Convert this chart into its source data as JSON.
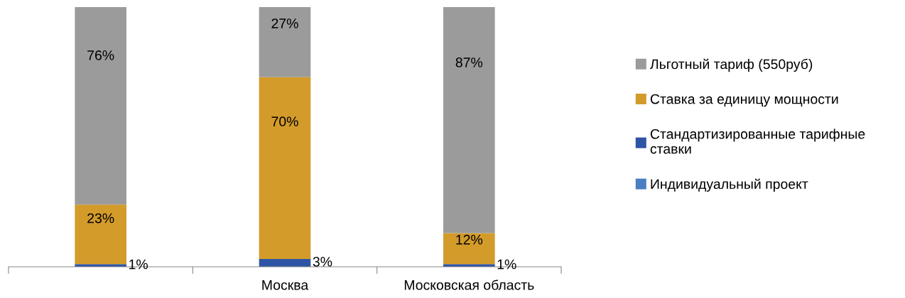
{
  "chart_data": {
    "type": "bar",
    "stacked": true,
    "categories": [
      null,
      "Москва",
      "Московская область"
    ],
    "series": [
      {
        "name": "Индивидуальный проект",
        "color": "#4a7fc1",
        "values": [
          null,
          null,
          null
        ]
      },
      {
        "name": "Стандартизированные тарифные ставки",
        "color": "#2e55a5",
        "values": [
          1,
          3,
          1
        ],
        "value_labels": [
          "1%",
          "3%",
          "1%"
        ]
      },
      {
        "name": "Ставка за единицу мощности",
        "color": "#d39b2a",
        "values": [
          23,
          70,
          12
        ],
        "value_labels": [
          "23%",
          "70%",
          "12%"
        ]
      },
      {
        "name": "Льготный тариф (550руб)",
        "color": "#9b9b9b",
        "values": [
          76,
          27,
          87
        ],
        "value_labels": [
          "76%",
          "27%",
          "87%"
        ]
      }
    ],
    "ylim": [
      0,
      100
    ],
    "tick_labels": "x",
    "legend": "right",
    "grid": false
  }
}
